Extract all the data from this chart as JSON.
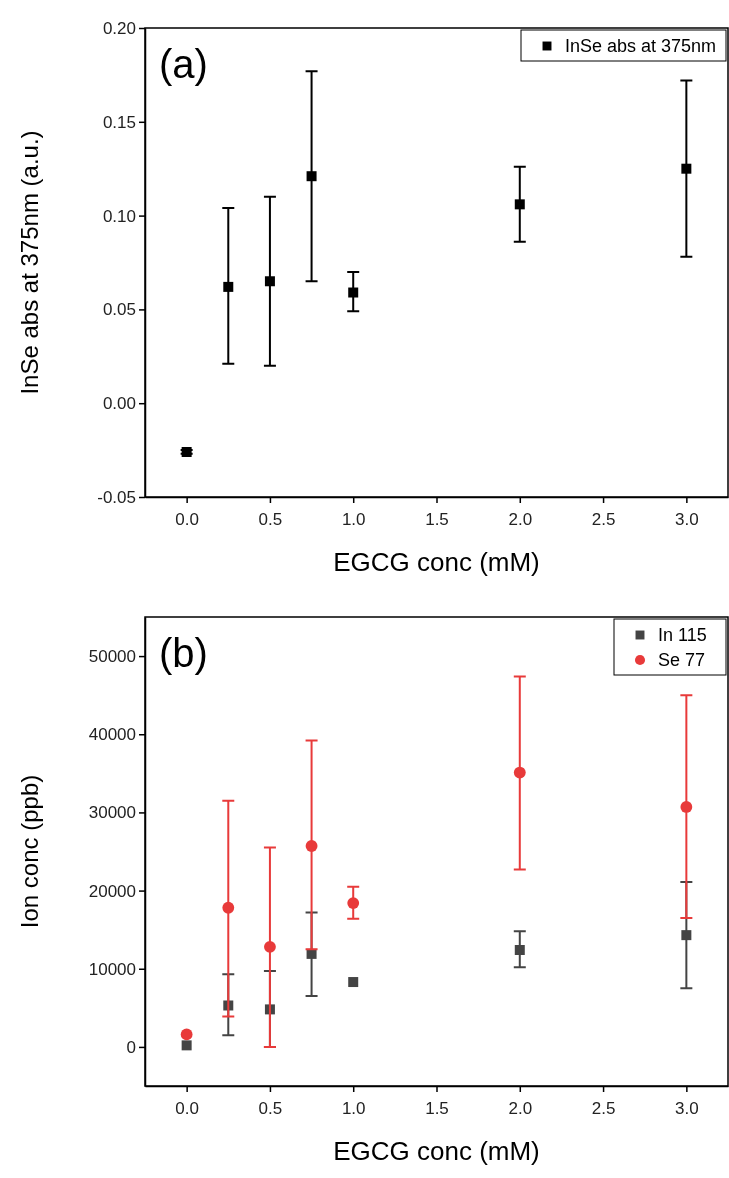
{
  "chart_data": [
    {
      "type": "scatter",
      "xlabel": "EGCG conc (mM)",
      "ylabel": "InSe abs at 375nm (a.u.)",
      "annotations": [
        "(a)"
      ],
      "xlim": [
        -0.25,
        3.25
      ],
      "xticks": [
        {
          "value": 0,
          "label": "0.0"
        },
        {
          "value": 0.5,
          "label": "0.5"
        },
        {
          "value": 1,
          "label": "1.0"
        },
        {
          "value": 1.5,
          "label": "1.5"
        },
        {
          "value": 2,
          "label": "2.0"
        },
        {
          "value": 2.5,
          "label": "2.5"
        },
        {
          "value": 3,
          "label": "3.0"
        }
      ],
      "ylim": [
        -0.05,
        0.2
      ],
      "yticks": [
        {
          "value": -0.05,
          "label": "-0.05"
        },
        {
          "value": 0,
          "label": "0.00"
        },
        {
          "value": 0.05,
          "label": "0.05"
        },
        {
          "value": 0.1,
          "label": "0.10"
        },
        {
          "value": 0.15,
          "label": "0.15"
        },
        {
          "value": 0.2,
          "label": "0.20"
        }
      ],
      "x": [
        0,
        0.25,
        0.5,
        0.75,
        1,
        2,
        3
      ],
      "legend": "top right",
      "grid": false,
      "marker": "square",
      "series": [
        {
          "name": "InSe abs at 375nm",
          "color": "#000000",
          "values": [
            -0.026,
            0.062,
            0.065,
            0.121,
            0.059,
            0.106,
            0.125
          ],
          "errors": [
            0.001,
            [
              0.021,
              0.104
            ],
            [
              0.02,
              0.11
            ],
            [
              0.065,
              0.177
            ],
            [
              0.049,
              0.07
            ],
            [
              0.086,
              0.126
            ],
            [
              0.078,
              0.172
            ]
          ]
        }
      ]
    },
    {
      "type": "scatter",
      "xlabel": "EGCG conc (mM)",
      "ylabel": "Ion conc (ppb)",
      "annotations": [
        "(b)"
      ],
      "xlim": [
        -0.25,
        3.25
      ],
      "xticks": [
        {
          "value": 0,
          "label": "0.0"
        },
        {
          "value": 0.5,
          "label": "0.5"
        },
        {
          "value": 1,
          "label": "1.0"
        },
        {
          "value": 1.5,
          "label": "1.5"
        },
        {
          "value": 2,
          "label": "2.0"
        },
        {
          "value": 2.5,
          "label": "2.5"
        },
        {
          "value": 3,
          "label": "3.0"
        }
      ],
      "ylim": [
        -5000,
        55000
      ],
      "yticks": [
        0,
        10000,
        20000,
        30000,
        40000,
        50000
      ],
      "x": [
        0,
        0.25,
        0.5,
        0.75,
        1,
        2,
        3
      ],
      "legend": "top right",
      "grid": false,
      "series": [
        {
          "name": "In 115",
          "color": "#444444",
          "marker": "square",
          "values": [
            200,
            5300,
            4800,
            11900,
            8300,
            12400,
            14300
          ],
          "errors": [
            null,
            [
              1500,
              9300
            ],
            [
              0,
              9700
            ],
            [
              6500,
              17200
            ],
            null,
            [
              10200,
              14800
            ],
            [
              7500,
              21100
            ]
          ]
        },
        {
          "name": "Se 77",
          "color": "#e83a3a",
          "marker": "circle",
          "values": [
            1600,
            17800,
            12800,
            25700,
            18400,
            35100,
            30700
          ],
          "errors": [
            null,
            [
              3900,
              31500
            ],
            [
              0,
              25500
            ],
            [
              12500,
              39200
            ],
            [
              16400,
              20500
            ],
            [
              22700,
              47400
            ],
            [
              16500,
              45000
            ]
          ]
        }
      ]
    }
  ]
}
